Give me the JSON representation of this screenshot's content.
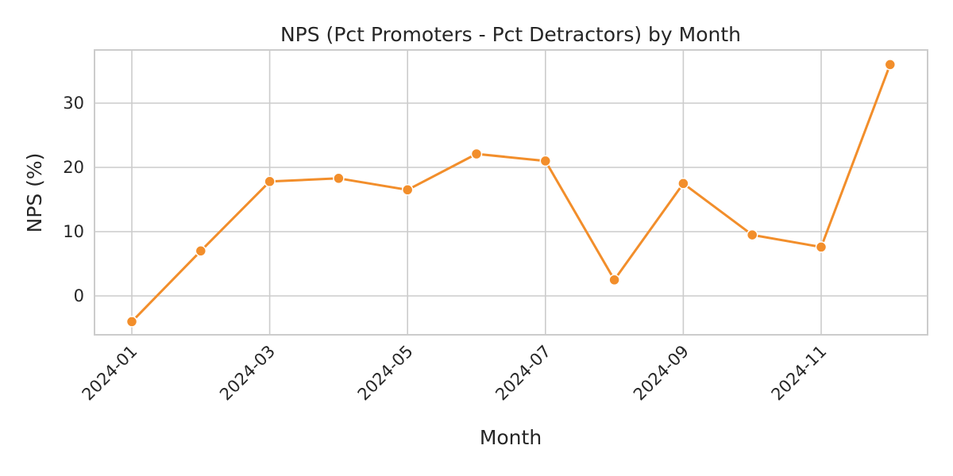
{
  "chart_data": {
    "type": "line",
    "title": "NPS (Pct Promoters - Pct Detractors) by Month",
    "xlabel": "Month",
    "ylabel": "NPS (%)",
    "x": [
      "2024-01",
      "2024-02",
      "2024-03",
      "2024-04",
      "2024-05",
      "2024-06",
      "2024-07",
      "2024-08",
      "2024-09",
      "2024-10",
      "2024-11",
      "2024-12"
    ],
    "series": [
      {
        "values": [
          -4.0,
          7.0,
          17.8,
          18.3,
          16.5,
          22.1,
          21.0,
          2.5,
          17.5,
          9.5,
          7.6,
          36.0
        ]
      }
    ],
    "x_ticks": [
      "2024-01",
      "2024-03",
      "2024-05",
      "2024-07",
      "2024-09",
      "2024-11"
    ],
    "y_ticks": [
      0,
      10,
      20,
      30
    ],
    "ylim": [
      -6,
      38
    ],
    "grid": true,
    "color": "#f28e2b"
  }
}
